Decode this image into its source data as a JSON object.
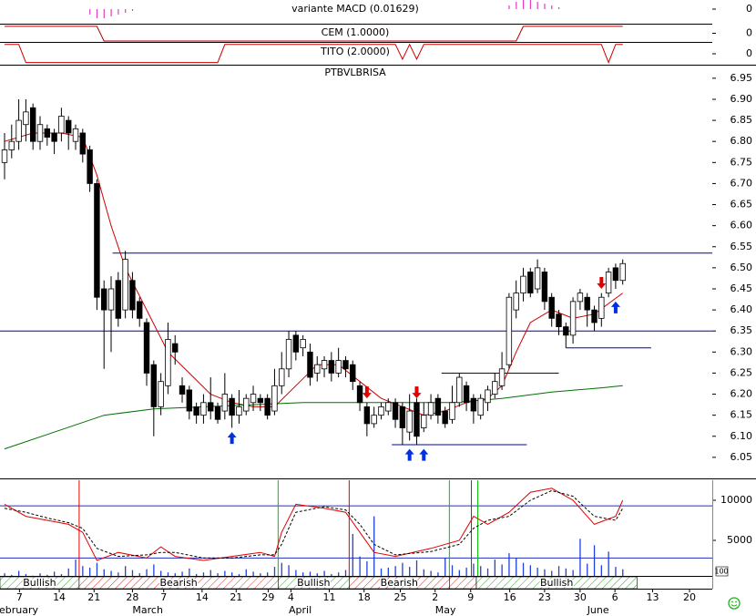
{
  "chart_data": [
    {
      "type": "bar",
      "title": "variante MACD (0.01629)",
      "color": "#e040c0",
      "ylim": [
        -0.01,
        0.01
      ],
      "yticks": [
        0
      ],
      "x": [
        12,
        13,
        14,
        15,
        16,
        17,
        18,
        71,
        72,
        73,
        74,
        75,
        76,
        77,
        78
      ],
      "values": [
        -0.006,
        -0.01,
        -0.01,
        -0.008,
        -0.006,
        -0.004,
        -0.002,
        0.004,
        0.008,
        0.01,
        0.01,
        0.008,
        0.006,
        0.004,
        0.002
      ]
    },
    {
      "type": "line",
      "title": "CEM (1.0000)",
      "ylim": [
        -1,
        1
      ],
      "yticks": [
        0
      ],
      "series": [
        {
          "color": "#b00000",
          "x": [
            0,
            13,
            14,
            72,
            73,
            87
          ],
          "values": [
            0.8,
            0.8,
            -0.9,
            -0.9,
            0.8,
            0.8
          ]
        }
      ]
    },
    {
      "type": "line",
      "title": "TITO (2.0000)",
      "ylim": [
        -1,
        1
      ],
      "yticks": [
        0
      ],
      "series": [
        {
          "color": "#d00000",
          "x": [
            0,
            2,
            3,
            30,
            31,
            55,
            56,
            57,
            58,
            59,
            60,
            84,
            85,
            86,
            87
          ],
          "values": [
            0.85,
            0.85,
            -0.8,
            -0.8,
            0.85,
            0.85,
            -0.5,
            0.85,
            -0.5,
            0.85,
            0.85,
            0.85,
            -0.8,
            0.85,
            0.85
          ]
        }
      ]
    },
    {
      "type": "candlestick",
      "title": "PTBVLBRISA",
      "xlim": [
        -0.64,
        99.6
      ],
      "ylim": [
        6.0,
        6.98
      ],
      "yticks": [
        6.05,
        {
          "value": 6.1,
          "label": "6.10"
        },
        6.15,
        {
          "value": 6.2,
          "label": "6.20"
        },
        6.25,
        {
          "value": 6.3,
          "label": "6.30"
        },
        6.35,
        {
          "value": 6.4,
          "label": "6.40"
        },
        6.45,
        {
          "value": 6.5,
          "label": "6.50"
        },
        6.55,
        {
          "value": 6.6,
          "label": "6.60"
        },
        6.65,
        {
          "value": 6.7,
          "label": "6.70"
        },
        6.75,
        {
          "value": 6.8,
          "label": "6.80"
        },
        6.85,
        {
          "value": 6.9,
          "label": "6.90"
        },
        6.95
      ],
      "open": [
        6.75,
        6.78,
        6.8,
        6.84,
        6.88,
        6.8,
        6.83,
        6.82,
        6.82,
        6.85,
        6.8,
        6.82,
        6.78,
        6.7,
        6.45,
        6.4,
        6.47,
        6.4,
        6.47,
        6.42,
        6.37,
        6.27,
        6.17,
        6.22,
        6.32,
        6.22,
        6.21,
        6.17,
        6.15,
        6.18,
        6.17,
        6.16,
        6.19,
        6.15,
        6.16,
        6.18,
        6.19,
        6.19,
        6.16,
        6.22,
        6.26,
        6.34,
        6.31,
        6.3,
        6.25,
        6.26,
        6.28,
        6.25,
        6.28,
        6.27,
        6.22,
        6.17,
        6.13,
        6.15,
        6.16,
        6.18,
        6.17,
        6.11,
        6.18,
        6.12,
        6.15,
        6.19,
        6.16,
        6.14,
        6.18,
        6.22,
        6.19,
        6.15,
        6.18,
        6.2,
        6.22,
        6.27,
        6.4,
        6.44,
        6.49,
        6.45,
        6.49,
        6.43,
        6.39,
        6.36,
        6.34,
        6.42,
        6.43,
        6.4,
        6.38,
        6.44,
        6.5,
        6.47
      ],
      "close": [
        6.78,
        6.8,
        6.85,
        6.87,
        6.8,
        6.84,
        6.81,
        6.8,
        6.86,
        6.82,
        6.83,
        6.77,
        6.7,
        6.43,
        6.4,
        6.45,
        6.38,
        6.52,
        6.4,
        6.38,
        6.25,
        6.17,
        6.23,
        6.33,
        6.3,
        6.2,
        6.16,
        6.15,
        6.18,
        6.16,
        6.14,
        6.2,
        6.15,
        6.17,
        6.19,
        6.2,
        6.18,
        6.15,
        6.22,
        6.26,
        6.33,
        6.3,
        6.33,
        6.24,
        6.27,
        6.28,
        6.25,
        6.28,
        6.26,
        6.23,
        6.18,
        6.13,
        6.15,
        6.17,
        6.18,
        6.14,
        6.12,
        6.16,
        6.1,
        6.15,
        6.18,
        6.15,
        6.13,
        6.18,
        6.24,
        6.18,
        6.16,
        6.19,
        6.21,
        6.23,
        6.26,
        6.43,
        6.44,
        6.48,
        6.44,
        6.5,
        6.42,
        6.38,
        6.36,
        6.34,
        6.42,
        6.44,
        6.4,
        6.37,
        6.43,
        6.49,
        6.47,
        6.51
      ],
      "high": [
        6.82,
        6.84,
        6.9,
        6.9,
        6.89,
        6.86,
        6.84,
        6.83,
        6.88,
        6.86,
        6.84,
        6.83,
        6.79,
        6.71,
        6.47,
        6.48,
        6.49,
        6.54,
        6.49,
        6.43,
        6.38,
        6.28,
        6.25,
        6.37,
        6.34,
        6.24,
        6.22,
        6.18,
        6.2,
        6.24,
        6.18,
        6.25,
        6.2,
        6.21,
        6.2,
        6.22,
        6.2,
        6.2,
        6.26,
        6.3,
        6.35,
        6.35,
        6.34,
        6.32,
        6.29,
        6.29,
        6.3,
        6.31,
        6.29,
        6.28,
        6.23,
        6.18,
        6.17,
        6.18,
        6.19,
        6.19,
        6.18,
        6.2,
        6.19,
        6.18,
        6.2,
        6.2,
        6.17,
        6.22,
        6.25,
        6.23,
        6.2,
        6.2,
        6.22,
        6.25,
        6.3,
        6.44,
        6.47,
        6.5,
        6.5,
        6.52,
        6.5,
        6.44,
        6.4,
        6.37,
        6.43,
        6.45,
        6.44,
        6.41,
        6.44,
        6.5,
        6.51,
        6.52
      ],
      "low": [
        6.71,
        6.76,
        6.78,
        6.8,
        6.78,
        6.78,
        6.79,
        6.77,
        6.8,
        6.78,
        6.78,
        6.75,
        6.68,
        6.4,
        6.26,
        6.3,
        6.36,
        6.38,
        6.38,
        6.36,
        6.22,
        6.1,
        6.15,
        6.2,
        6.27,
        6.18,
        6.14,
        6.13,
        6.13,
        6.14,
        6.13,
        6.14,
        6.12,
        6.13,
        6.15,
        6.16,
        6.16,
        6.14,
        6.15,
        6.2,
        6.24,
        6.28,
        6.29,
        6.22,
        6.23,
        6.24,
        6.23,
        6.24,
        6.24,
        6.21,
        6.16,
        6.1,
        6.12,
        6.14,
        6.15,
        6.12,
        6.08,
        6.09,
        6.08,
        6.11,
        6.14,
        6.13,
        6.12,
        6.13,
        6.17,
        6.16,
        6.13,
        6.14,
        6.16,
        6.19,
        6.21,
        6.26,
        6.38,
        6.42,
        6.43,
        6.44,
        6.4,
        6.36,
        6.34,
        6.31,
        6.32,
        6.4,
        6.36,
        6.35,
        6.36,
        6.43,
        6.45,
        6.46
      ],
      "series": [
        {
          "color": "#d00000",
          "x": [
            0,
            4,
            8,
            11,
            13,
            15,
            17,
            20,
            23,
            26,
            29,
            32,
            35,
            38,
            41,
            44,
            47,
            50,
            53,
            56,
            59,
            62,
            65,
            68,
            70,
            72,
            74,
            77,
            80,
            83,
            87
          ],
          "values": [
            6.8,
            6.82,
            6.82,
            6.81,
            6.72,
            6.6,
            6.5,
            6.4,
            6.3,
            6.25,
            6.2,
            6.18,
            6.17,
            6.17,
            6.22,
            6.27,
            6.27,
            6.23,
            6.19,
            6.17,
            6.15,
            6.16,
            6.18,
            6.19,
            6.22,
            6.3,
            6.37,
            6.4,
            6.38,
            6.39,
            6.44
          ]
        },
        {
          "color": "#007000",
          "x": [
            0,
            7,
            14,
            21,
            28,
            35,
            42,
            49,
            56,
            63,
            70,
            77,
            84,
            87
          ],
          "values": [
            6.07,
            6.11,
            6.15,
            6.165,
            6.17,
            6.175,
            6.18,
            6.18,
            6.18,
            6.18,
            6.19,
            6.205,
            6.215,
            6.22
          ]
        }
      ],
      "hlines": [
        {
          "price": 6.535,
          "from": 15.2,
          "to": 99.6
        },
        {
          "price": 6.35,
          "from": -0.64,
          "to": 99.6
        },
        {
          "price": 6.25,
          "from": 61.5,
          "to": 78
        },
        {
          "price": 6.08,
          "from": 54.5,
          "to": 73.5
        },
        {
          "price": 6.31,
          "from": 79,
          "to": 91
        }
      ],
      "hline_color": "#0000b0",
      "arrows": [
        {
          "dir": "up",
          "x": 32,
          "price": 6.11,
          "color": "#0030e0"
        },
        {
          "dir": "up",
          "x": 57,
          "price": 6.07,
          "color": "#0030e0"
        },
        {
          "dir": "up",
          "x": 59,
          "price": 6.07,
          "color": "#0030e0"
        },
        {
          "dir": "up",
          "x": 86,
          "price": 6.42,
          "color": "#0030e0"
        },
        {
          "dir": "down",
          "x": 51,
          "price": 6.19,
          "color": "#e00000"
        },
        {
          "dir": "down",
          "x": 58,
          "price": 6.19,
          "color": "#e00000"
        },
        {
          "dir": "down",
          "x": 84,
          "price": 6.45,
          "color": "#e00000"
        }
      ]
    },
    {
      "type": "line",
      "ylim": [
        570,
        12500
      ],
      "yticks": [
        10000,
        5000
      ],
      "corner_label": "100",
      "series": [
        {
          "color": "#e00000",
          "x": [
            0,
            3,
            6,
            9,
            11,
            13,
            16,
            20,
            22,
            24,
            28,
            32,
            36,
            38,
            39,
            41,
            45,
            48,
            50,
            52,
            55,
            60,
            64,
            66,
            68,
            71,
            74,
            77,
            80,
            83,
            86,
            87
          ],
          "values": [
            9500,
            8000,
            7500,
            7000,
            6000,
            2500,
            3500,
            2800,
            4200,
            3000,
            2500,
            3000,
            3500,
            3000,
            6000,
            9500,
            9000,
            8500,
            6000,
            3500,
            3000,
            4000,
            5000,
            8000,
            7000,
            8500,
            11000,
            11500,
            10000,
            7000,
            8000,
            10000
          ]
        },
        {
          "color": "#000000",
          "dash": true,
          "x": [
            0,
            3,
            6,
            9,
            11,
            13,
            16,
            20,
            22,
            24,
            28,
            32,
            36,
            38,
            39,
            41,
            45,
            48,
            50,
            52,
            55,
            60,
            64,
            66,
            68,
            71,
            74,
            77,
            80,
            83,
            86,
            87
          ],
          "values": [
            9000,
            8500,
            7800,
            7200,
            6500,
            4000,
            3000,
            3200,
            3500,
            3500,
            2800,
            2800,
            3200,
            3200,
            4500,
            8500,
            9200,
            8800,
            7000,
            4500,
            3200,
            3600,
            4500,
            6500,
            7500,
            8000,
            10000,
            11200,
            10500,
            8000,
            7500,
            9000
          ]
        }
      ],
      "volume_color": "#2040e0",
      "volume": [
        900,
        700,
        1200,
        800,
        600,
        900,
        700,
        1100,
        800,
        1500,
        2600,
        1800,
        1600,
        2200,
        1400,
        1200,
        1000,
        1800,
        1300,
        900,
        1400,
        2000,
        1200,
        1000,
        900,
        1100,
        1500,
        800,
        1000,
        1300,
        900,
        1200,
        1000,
        800,
        1400,
        1100,
        900,
        1000,
        1700,
        2200,
        1900,
        1300,
        1000,
        1100,
        900,
        1200,
        800,
        1000,
        1300,
        5800,
        3000,
        2400,
        8000,
        1500,
        1600,
        1800,
        2200,
        1700,
        2500,
        1400,
        1200,
        1000,
        2800,
        1900,
        1300,
        1600,
        2100,
        1800,
        1500,
        2600,
        2000,
        3400,
        2800,
        2200,
        1900,
        1600,
        1400,
        1200,
        1800,
        1500,
        1300,
        5200,
        2100,
        4400,
        1900,
        3600,
        1700,
        1400
      ],
      "vlines": [
        {
          "x": 10.5,
          "color": "#e00000"
        },
        {
          "x": 48.5,
          "color": "#e00000"
        },
        {
          "x": 65.7,
          "color": "#e00000"
        },
        {
          "x": 38.5,
          "color": "#00c000"
        },
        {
          "x": 62.6,
          "color": "#00c000"
        },
        {
          "x": 66.6,
          "color": "#00c000"
        }
      ],
      "hlines": [
        9300,
        2800
      ],
      "hline_color": "#2030c0",
      "bands": [
        {
          "label": "Bullish",
          "from": -0.64,
          "to": 10.5,
          "kind": "bull"
        },
        {
          "label": "Bearish",
          "from": 10.5,
          "to": 38.5,
          "kind": "bear"
        },
        {
          "label": "Bullish",
          "from": 38.5,
          "to": 48.5,
          "kind": "bull"
        },
        {
          "label": "Bearish",
          "from": 48.5,
          "to": 62.6,
          "kind": "bear"
        },
        {
          "from": 62.6,
          "to": 66.4,
          "kind": "bear"
        },
        {
          "label": "Bullish",
          "from": 66.4,
          "to": 89,
          "kind": "bull"
        }
      ],
      "xlabels": [
        {
          "value": 2.1,
          "label": "7"
        },
        {
          "value": 7.7,
          "label": "14"
        },
        {
          "value": 12.6,
          "label": "21"
        },
        {
          "value": 18,
          "label": "28"
        },
        {
          "value": 22.4,
          "label": "7"
        },
        {
          "value": 27.8,
          "label": "14"
        },
        {
          "value": 32.6,
          "label": "21"
        },
        {
          "value": 37.1,
          "label": "29"
        },
        {
          "value": 40.3,
          "label": "4"
        },
        {
          "value": 45.7,
          "label": "11"
        },
        {
          "value": 50.6,
          "label": "18"
        },
        {
          "value": 55.7,
          "label": "25"
        },
        {
          "value": 60.6,
          "label": "2"
        },
        {
          "value": 65.6,
          "label": "9"
        },
        {
          "value": 71.1,
          "label": "16"
        },
        {
          "value": 76,
          "label": "23"
        },
        {
          "value": 81,
          "label": "30"
        },
        {
          "value": 85.9,
          "label": "6"
        },
        {
          "value": 91.2,
          "label": "13"
        },
        {
          "value": 96.4,
          "label": "20"
        }
      ],
      "months": [
        {
          "value": -1.5,
          "label": "February"
        },
        {
          "value": 18,
          "label": "March"
        },
        {
          "value": 40,
          "label": "April"
        },
        {
          "value": 60.6,
          "label": "May"
        },
        {
          "value": 82,
          "label": "June"
        }
      ]
    }
  ]
}
